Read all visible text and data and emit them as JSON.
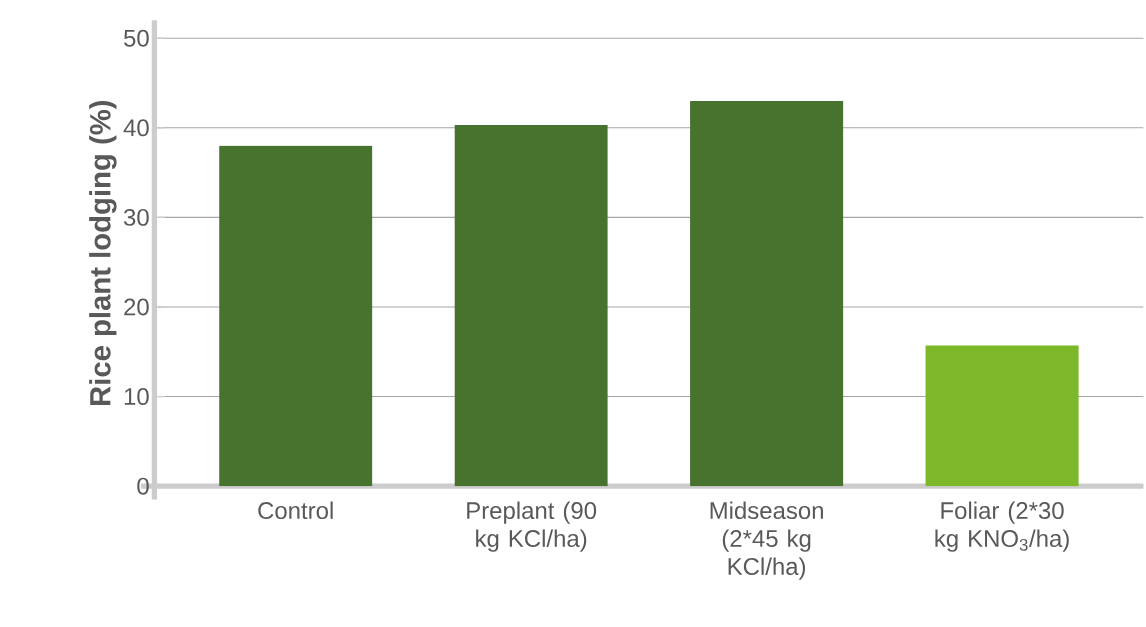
{
  "chart_data": {
    "type": "bar",
    "ylabel": "Rice plant lodging (%)",
    "categories": [
      "Control",
      "Preplant (90 kg KCl/ha)",
      "Midseason (2*45 kg KCl/ha)",
      "Foliar (2*30 kg KNO$_{3}$/ha)"
    ],
    "values": [
      38,
      40.3,
      43,
      15.7
    ],
    "colors": [
      "#47732e",
      "#47732e",
      "#47732e",
      "#7cb82a"
    ],
    "ylim": [
      0,
      52
    ],
    "yticks": [
      0,
      10,
      20,
      30,
      40,
      50
    ],
    "grid": "y"
  }
}
